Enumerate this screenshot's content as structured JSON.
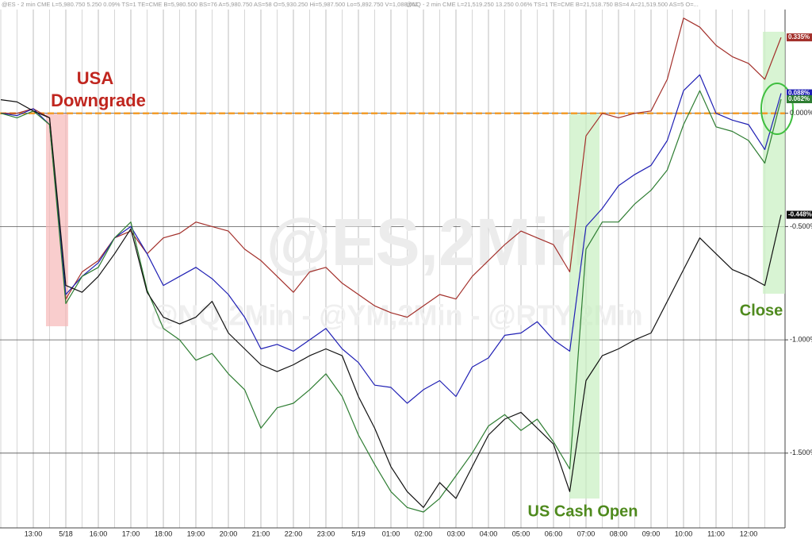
{
  "chart_data": {
    "type": "line",
    "header": [
      "@ES - 2 min CME L=5,980.750 5.250 0.09% TS=1 TE=CME B=5,980.500 BS=76 A=5,980.750 AS=58 O=5,930.250 Hi=5,987.500 Lo=5,892.750 V=1,088,011",
      "@NQ - 2 min CME L=21,519.250 13.250 0.06% TS=1 TE=CME B=21,518.750 BS=4 A=21,519.500 AS=5 O=..."
    ],
    "watermarks": [
      "@ES,2Min",
      "@NQ,2Min - @YM,2Min - @RTY,2Min"
    ],
    "annotations": [
      "USA",
      "Downgrade",
      "US Cash Open",
      "Close"
    ],
    "reference_line": {
      "value": 0,
      "color": "#f39c2a"
    },
    "categories": [
      null,
      null,
      "13:00",
      null,
      "5/18",
      null,
      "16:00",
      null,
      "17:00",
      null,
      "18:00",
      null,
      "19:00",
      null,
      "20:00",
      null,
      "21:00",
      null,
      "22:00",
      null,
      "23:00",
      null,
      "5/19",
      null,
      "01:00",
      null,
      "02:00",
      null,
      "03:00",
      null,
      "04:00",
      null,
      "05:00",
      null,
      "06:00",
      null,
      "07:00",
      null,
      "08:00",
      null,
      "09:00",
      null,
      "10:00",
      null,
      "11:00",
      null,
      "12:00",
      null,
      null
    ],
    "ylim": [
      -1.83,
      0.5
    ],
    "yticks": [
      {
        "value": 0,
        "label": "0.000%"
      },
      {
        "value": -0.5,
        "label": "-0.500%"
      },
      {
        "value": -1,
        "label": "-1.000%"
      },
      {
        "value": -1.5,
        "label": "-1.500%"
      }
    ],
    "grid": true,
    "series": [
      {
        "color": "#a3302b",
        "end_label": "0.335%",
        "values": [
          0.0,
          0.0,
          0.02,
          -0.02,
          -0.82,
          -0.7,
          -0.65,
          -0.55,
          -0.52,
          -0.62,
          -0.55,
          -0.53,
          -0.48,
          -0.5,
          -0.52,
          -0.6,
          -0.65,
          -0.72,
          -0.79,
          -0.7,
          -0.68,
          -0.75,
          -0.8,
          -0.85,
          -0.88,
          -0.9,
          -0.85,
          -0.8,
          -0.82,
          -0.72,
          -0.65,
          -0.58,
          -0.52,
          -0.55,
          -0.58,
          -0.7,
          -0.1,
          0.0,
          -0.02,
          0.0,
          0.01,
          0.15,
          0.42,
          0.38,
          0.3,
          0.25,
          0.22,
          0.15,
          0.335
        ]
      },
      {
        "color": "#1f1fb4",
        "end_label": "0.088%",
        "values": [
          0.0,
          -0.01,
          0.02,
          -0.05,
          -0.8,
          -0.72,
          -0.66,
          -0.55,
          -0.5,
          -0.62,
          -0.76,
          -0.72,
          -0.68,
          -0.73,
          -0.8,
          -0.9,
          -1.04,
          -1.02,
          -1.05,
          -1.0,
          -0.95,
          -1.04,
          -1.1,
          -1.2,
          -1.21,
          -1.28,
          -1.22,
          -1.18,
          -1.25,
          -1.12,
          -1.08,
          -0.98,
          -0.97,
          -0.92,
          -1.0,
          -1.05,
          -0.5,
          -0.42,
          -0.32,
          -0.27,
          -0.23,
          -0.12,
          0.1,
          0.17,
          0.0,
          -0.03,
          -0.05,
          -0.16,
          0.088
        ]
      },
      {
        "color": "#2e7d32",
        "end_label": "0.062%",
        "values": [
          0.0,
          -0.02,
          0.01,
          -0.05,
          -0.84,
          -0.72,
          -0.68,
          -0.55,
          -0.48,
          -0.78,
          -0.95,
          -1.0,
          -1.09,
          -1.06,
          -1.15,
          -1.22,
          -1.39,
          -1.3,
          -1.28,
          -1.22,
          -1.15,
          -1.25,
          -1.42,
          -1.55,
          -1.67,
          -1.74,
          -1.76,
          -1.7,
          -1.6,
          -1.5,
          -1.38,
          -1.33,
          -1.4,
          -1.35,
          -1.45,
          -1.57,
          -0.6,
          -0.48,
          -0.48,
          -0.4,
          -0.34,
          -0.25,
          -0.05,
          0.1,
          -0.06,
          -0.08,
          -0.12,
          -0.22,
          0.062
        ]
      },
      {
        "color": "#111111",
        "end_label": "-0.448%",
        "values": [
          0.06,
          0.05,
          0.01,
          -0.02,
          -0.76,
          -0.79,
          -0.72,
          -0.62,
          -0.51,
          -0.79,
          -0.9,
          -0.93,
          -0.9,
          -0.83,
          -0.97,
          -1.04,
          -1.11,
          -1.14,
          -1.11,
          -1.07,
          -1.04,
          -1.07,
          -1.25,
          -1.39,
          -1.56,
          -1.67,
          -1.74,
          -1.63,
          -1.7,
          -1.56,
          -1.42,
          -1.35,
          -1.32,
          -1.39,
          -1.46,
          -1.67,
          -1.18,
          -1.07,
          -1.04,
          -1.0,
          -0.97,
          -0.83,
          -0.69,
          -0.55,
          -0.62,
          -0.69,
          -0.72,
          -0.76,
          -0.448
        ]
      }
    ]
  }
}
